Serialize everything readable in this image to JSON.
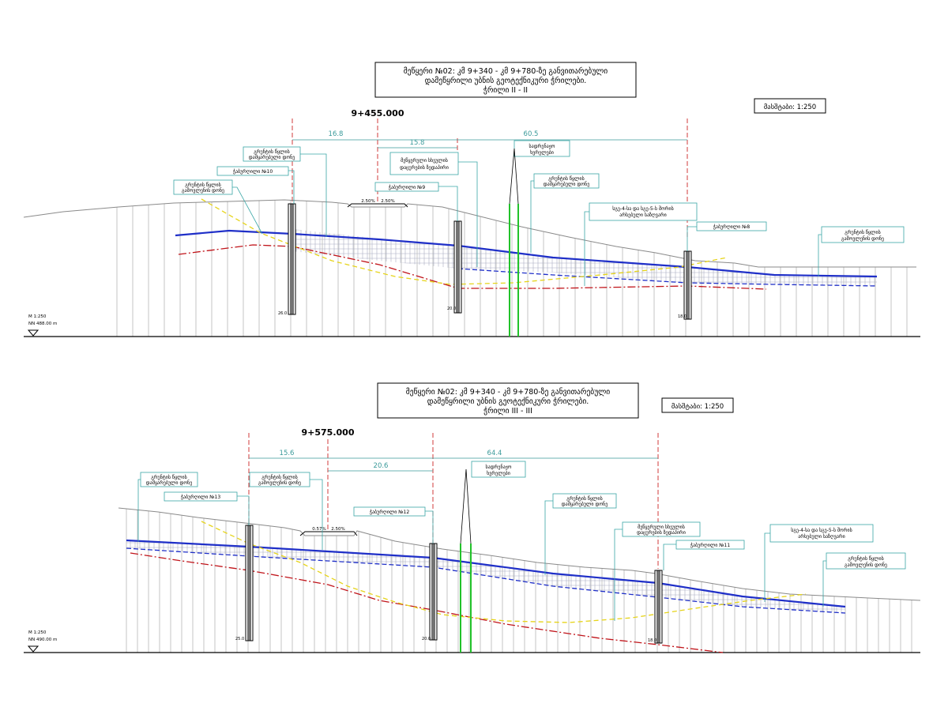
{
  "sections": [
    {
      "title": [
        "მეწყერი №02: კმ 9+340 - კმ 9+780-ზე განვითარებული",
        "დამეწყრილი უბნის გეოტექნიკური ჭრილები.",
        "ჭრილი II - II"
      ],
      "scale_label": "მასშტაბი:  1:250",
      "chainage": "9+455.000",
      "dimensions": [
        "16.8",
        "15.8",
        "60.5"
      ],
      "slopes": [
        "2.50%",
        "2.50%"
      ],
      "left_scale": [
        "M  1:250",
        "NN  488.00  m"
      ],
      "callouts": {
        "gw_observed": [
          "გრუნტის წყლის",
          "დამყარებული დონე"
        ],
        "borehole_10": "ჭაბურღილი №10",
        "gw_appear": [
          "გრუნტის წყლის",
          "გამოვლენის დონე"
        ],
        "slip_surface": [
          "მეწყერული სხეულის",
          "დაცურების ზედაპირი"
        ],
        "borehole_9": "ჭაბურღილი №9",
        "drainage": [
          "სადრენაჟო",
          "ხვრელები"
        ],
        "gw_observed_2": [
          "გრუნტის წყლის",
          "დამყარებული დონე"
        ],
        "layer_boundary": [
          "სგე-4-სა და სგე-5-ს შორის",
          "არსებული საზღვარი"
        ],
        "borehole_8": "ჭაბურღილი №8",
        "gw_appear_2": [
          "გრუნტის წყლის",
          "გამოვლენის დონე"
        ]
      },
      "depth_labels": [
        "26.0",
        "20.0",
        "18.0"
      ]
    },
    {
      "title": [
        "მეწყერი №02: კმ 9+340 - კმ 9+780-ზე განვითარებული",
        "დამეწყრილი უბნის გეოტექნიკური ჭრილები.",
        "ჭრილი III - III"
      ],
      "scale_label": "მასშტაბი:  1:250",
      "chainage": "9+575.000",
      "dimensions": [
        "15.6",
        "20.6",
        "64.4"
      ],
      "slopes": [
        "0.57%",
        "2.50%"
      ],
      "left_scale": [
        "M  1:250",
        "NN  490.00  m"
      ],
      "callouts": {
        "gw_observed": [
          "გრუნტის წყლის",
          "დამყარებული დონე"
        ],
        "gw_appear": [
          "გრუნტის წყლის",
          "გამოვლენის დონე"
        ],
        "borehole_13": "ჭაბურღილი №13",
        "drainage": [
          "სადრენაჟო",
          "ხვრელები"
        ],
        "borehole_12": "ჭაბურღილი №12",
        "gw_observed_2": [
          "გრუნტის წყლის",
          "დამყარებული დონე"
        ],
        "slip_surface": [
          "მეწყერული სხეულის",
          "დაცურების ზედაპირი"
        ],
        "borehole_11": "ჭაბურღილი №11",
        "layer_boundary": [
          "სგე-4-სა და სგე-5-ს შორის",
          "არსებული საზღვარი"
        ],
        "gw_appear_2": [
          "გრუნტის წყლის",
          "გამოვლენის დონე"
        ]
      },
      "depth_labels": [
        "25.0",
        "20.0",
        "18.0"
      ]
    }
  ],
  "colors": {
    "blue": "#1f2fc8",
    "red": "#c0141a",
    "yellow": "#f2e21a",
    "green": "#22c22a",
    "teal": "#3aa6a6",
    "ground": "#8a8a8a",
    "grid": "#8c8c8c"
  }
}
